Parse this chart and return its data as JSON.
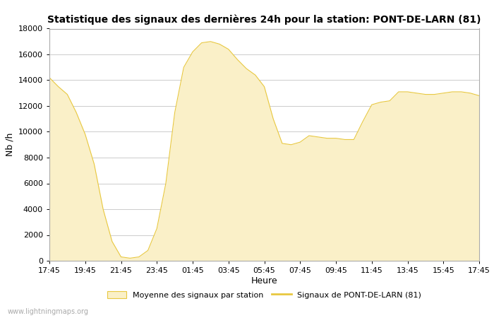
{
  "title": "Statistique des signaux des dernières 24h pour la station: PONT-DE-LARN (81)",
  "xlabel": "Heure",
  "ylabel": "Nb /h",
  "ylim": [
    0,
    18000
  ],
  "yticks": [
    0,
    2000,
    4000,
    6000,
    8000,
    10000,
    12000,
    14000,
    16000,
    18000
  ],
  "xtick_labels": [
    "17:45",
    "19:45",
    "21:45",
    "23:45",
    "01:45",
    "03:45",
    "05:45",
    "07:45",
    "09:45",
    "11:45",
    "13:45",
    "15:45",
    "17:45"
  ],
  "fill_color": "#FAF0C8",
  "fill_edge_color": "#E8C840",
  "line_color": "#E8C840",
  "background_color": "#ffffff",
  "grid_color": "#cccccc",
  "watermark": "www.lightningmaps.org",
  "legend_fill_label": "Moyenne des signaux par station",
  "legend_line_label": "Signaux de PONT-DE-LARN (81)",
  "x_values": [
    0,
    1,
    2,
    3,
    4,
    5,
    6,
    7,
    8,
    9,
    10,
    11,
    12,
    13,
    14,
    15,
    16,
    17,
    18,
    19,
    20,
    21,
    22,
    23,
    24,
    25,
    26,
    27,
    28,
    29,
    30,
    31,
    32,
    33,
    34,
    35,
    36,
    37,
    38,
    39,
    40,
    41,
    42,
    43,
    44,
    45,
    46,
    47,
    48
  ],
  "y_values": [
    14200,
    13500,
    12900,
    11500,
    9800,
    7500,
    4000,
    1500,
    300,
    200,
    300,
    800,
    2500,
    6000,
    11500,
    15000,
    16200,
    16900,
    17000,
    16800,
    16400,
    15600,
    14900,
    14400,
    13500,
    11000,
    9100,
    9000,
    9200,
    9700,
    9600,
    9500,
    9500,
    9400,
    9400,
    10800,
    12100,
    12300,
    12400,
    13100,
    13100,
    13000,
    12900,
    12900,
    13000,
    13100,
    13100,
    13000,
    12800
  ]
}
